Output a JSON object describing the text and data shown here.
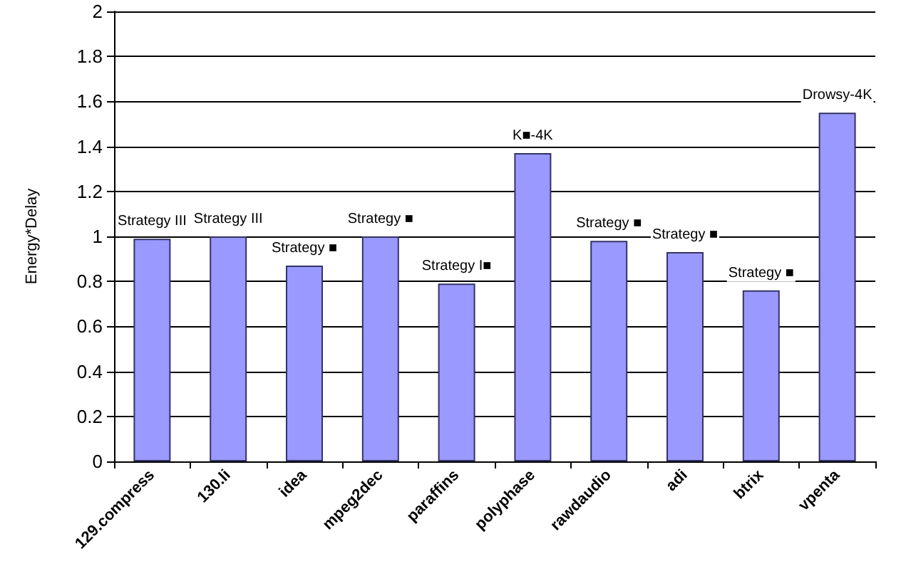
{
  "chart_data": {
    "type": "bar",
    "ylabel": "Energy*Delay",
    "categories": [
      "129.compress",
      "130.li",
      "idea",
      "mpeg2dec",
      "paraffins",
      "polyphase",
      "rawdaudio",
      "adi",
      "btrix",
      "vpenta"
    ],
    "values": [
      0.99,
      1.0,
      0.87,
      1.0,
      0.79,
      1.37,
      0.98,
      0.93,
      0.76,
      1.55
    ],
    "color": "#9999ff",
    "ylim": [
      0,
      2
    ],
    "yticks": [
      0,
      0.2,
      0.4,
      0.6,
      0.8,
      1,
      1.2,
      1.4,
      1.6,
      1.8,
      2
    ],
    "grid": "y",
    "annotations": [
      {
        "text": "Strategy III",
        "x": "129.compress",
        "y": 0.99
      },
      {
        "text": "Strategy III",
        "x": "130.li",
        "y": 1.0
      },
      {
        "text": "Strategy ■",
        "x": "idea",
        "y": 0.87
      },
      {
        "text": "Strategy ■",
        "x": "mpeg2dec",
        "y": 1.0
      },
      {
        "text": "Strategy I■",
        "x": "paraffins",
        "y": 0.79
      },
      {
        "text": "K■-4K",
        "x": "polyphase",
        "y": 1.37
      },
      {
        "text": "Strategy ■",
        "x": "rawdaudio",
        "y": 0.98
      },
      {
        "text": "Strategy ■",
        "x": "adi",
        "y": 0.93
      },
      {
        "text": "Strategy ■",
        "x": "btrix",
        "y": 0.76
      },
      {
        "text": "Drowsy-4K",
        "x": "vpenta",
        "y": 1.55
      }
    ]
  }
}
